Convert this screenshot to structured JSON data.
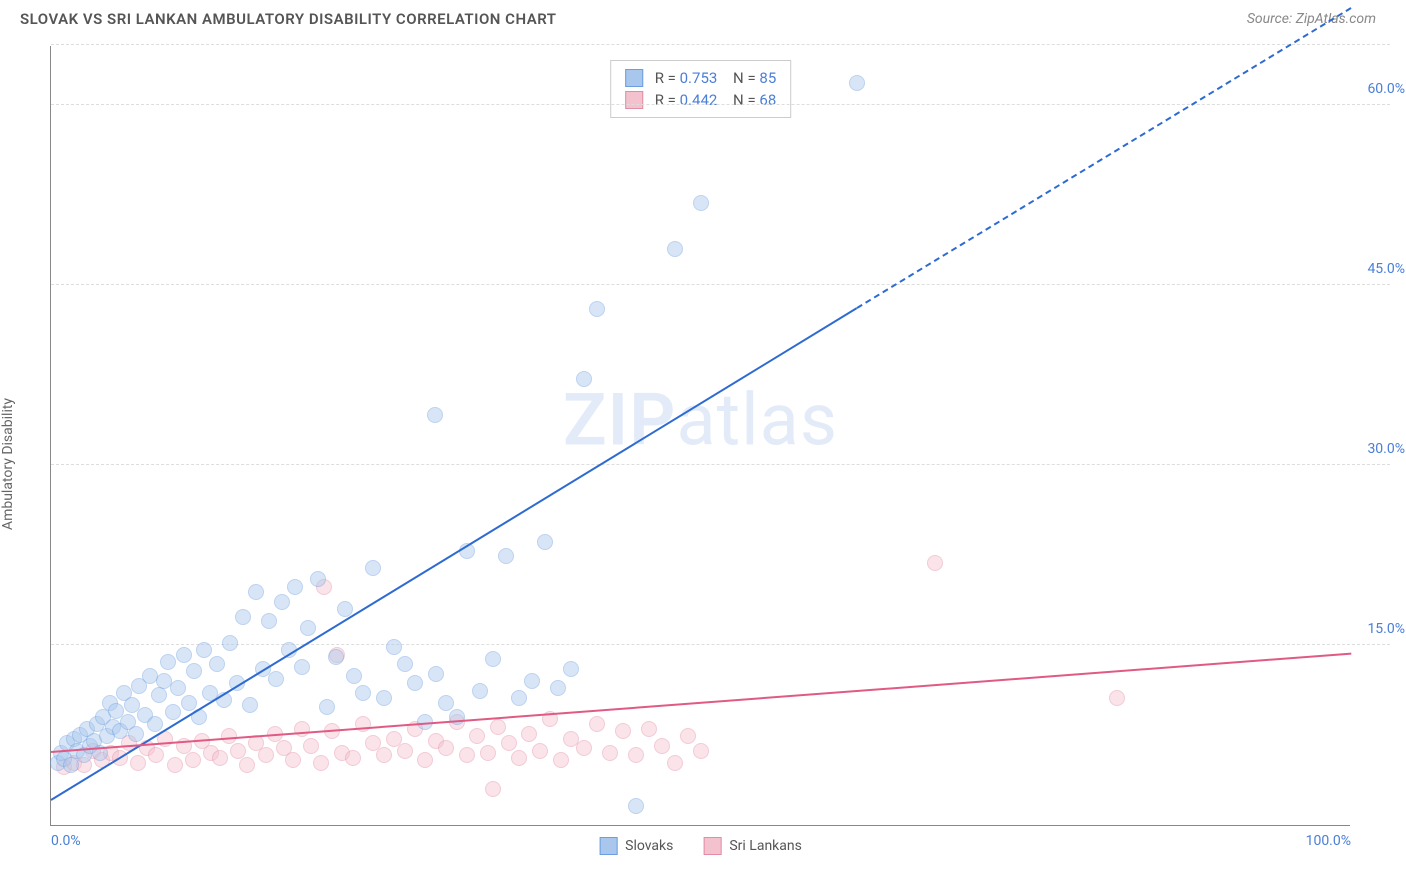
{
  "header": {
    "title": "SLOVAK VS SRI LANKAN AMBULATORY DISABILITY CORRELATION CHART",
    "source": "Source: ZipAtlas.com"
  },
  "chart": {
    "type": "scatter",
    "ylabel": "Ambulatory Disability",
    "watermark_zip": "ZIP",
    "watermark_atlas": "atlas",
    "xlim": [
      0,
      100
    ],
    "ylim": [
      0,
      65
    ],
    "xticks": [
      {
        "v": 0,
        "label": "0.0%"
      },
      {
        "v": 100,
        "label": "100.0%"
      }
    ],
    "yticks": [
      {
        "v": 15,
        "label": "15.0%"
      },
      {
        "v": 30,
        "label": "30.0%"
      },
      {
        "v": 45,
        "label": "45.0%"
      },
      {
        "v": 60,
        "label": "60.0%"
      }
    ],
    "grid_color": "#dddddd",
    "axis_color": "#888888",
    "background_color": "#ffffff",
    "marker_radius": 8,
    "marker_opacity": 0.45,
    "series": {
      "slovaks": {
        "label": "Slovaks",
        "fill": "#a9c7ec",
        "stroke": "#6b9de0",
        "line_color": "#2e6bd1",
        "r": "0.753",
        "n": "85",
        "trend": {
          "x1": 0,
          "y1": 2,
          "x2": 62,
          "y2": 43,
          "x2_dash": 100,
          "y2_dash": 68
        },
        "points": [
          [
            0.5,
            5.2
          ],
          [
            0.8,
            6.0
          ],
          [
            1.0,
            5.5
          ],
          [
            1.2,
            6.8
          ],
          [
            1.5,
            5.0
          ],
          [
            1.8,
            7.2
          ],
          [
            2.0,
            6.2
          ],
          [
            2.2,
            7.5
          ],
          [
            2.5,
            5.8
          ],
          [
            2.8,
            8.0
          ],
          [
            3.0,
            6.6
          ],
          [
            3.3,
            7.0
          ],
          [
            3.5,
            8.4
          ],
          [
            3.8,
            6.0
          ],
          [
            4.0,
            9.0
          ],
          [
            4.3,
            7.4
          ],
          [
            4.5,
            10.2
          ],
          [
            4.8,
            8.2
          ],
          [
            5.0,
            9.5
          ],
          [
            5.3,
            7.8
          ],
          [
            5.6,
            11.0
          ],
          [
            5.9,
            8.6
          ],
          [
            6.2,
            10.0
          ],
          [
            6.5,
            7.6
          ],
          [
            6.8,
            11.6
          ],
          [
            7.2,
            9.2
          ],
          [
            7.6,
            12.4
          ],
          [
            8.0,
            8.4
          ],
          [
            8.3,
            10.8
          ],
          [
            8.7,
            12.0
          ],
          [
            9.0,
            13.6
          ],
          [
            9.4,
            9.4
          ],
          [
            9.8,
            11.4
          ],
          [
            10.2,
            14.2
          ],
          [
            10.6,
            10.2
          ],
          [
            11.0,
            12.8
          ],
          [
            11.4,
            9.0
          ],
          [
            11.8,
            14.6
          ],
          [
            12.2,
            11.0
          ],
          [
            12.8,
            13.4
          ],
          [
            13.3,
            10.4
          ],
          [
            13.8,
            15.2
          ],
          [
            14.3,
            11.8
          ],
          [
            14.8,
            17.3
          ],
          [
            15.3,
            10.0
          ],
          [
            15.8,
            19.4
          ],
          [
            16.3,
            13.0
          ],
          [
            16.8,
            17.0
          ],
          [
            17.3,
            12.2
          ],
          [
            17.8,
            18.6
          ],
          [
            18.3,
            14.6
          ],
          [
            18.8,
            19.8
          ],
          [
            19.3,
            13.2
          ],
          [
            19.8,
            16.4
          ],
          [
            20.5,
            20.5
          ],
          [
            21.2,
            9.8
          ],
          [
            21.9,
            14.0
          ],
          [
            22.6,
            18.0
          ],
          [
            23.3,
            12.4
          ],
          [
            24.0,
            11.0
          ],
          [
            24.8,
            21.4
          ],
          [
            25.6,
            10.6
          ],
          [
            26.4,
            14.8
          ],
          [
            27.2,
            13.4
          ],
          [
            28.0,
            11.8
          ],
          [
            28.8,
            8.6
          ],
          [
            29.6,
            12.6
          ],
          [
            30.4,
            10.2
          ],
          [
            31.2,
            9.0
          ],
          [
            32.0,
            22.8
          ],
          [
            33.0,
            11.2
          ],
          [
            34.0,
            13.8
          ],
          [
            35.0,
            22.4
          ],
          [
            36.0,
            10.6
          ],
          [
            37.0,
            12.0
          ],
          [
            38.0,
            23.6
          ],
          [
            39.0,
            11.4
          ],
          [
            40.0,
            13.0
          ],
          [
            41.0,
            37.2
          ],
          [
            42.0,
            43.0
          ],
          [
            45.0,
            1.6
          ],
          [
            48.0,
            48.0
          ],
          [
            50.0,
            51.8
          ],
          [
            62.0,
            61.8
          ],
          [
            29.5,
            34.2
          ]
        ]
      },
      "srilankans": {
        "label": "Sri Lankans",
        "fill": "#f4c2cf",
        "stroke": "#e38da4",
        "line_color": "#e05a84",
        "r": "0.442",
        "n": "68",
        "trend": {
          "x1": 0,
          "y1": 6.0,
          "x2": 100,
          "y2": 14.2
        },
        "points": [
          [
            1.0,
            4.8
          ],
          [
            1.8,
            5.2
          ],
          [
            2.5,
            5.0
          ],
          [
            3.2,
            6.2
          ],
          [
            3.9,
            5.4
          ],
          [
            4.6,
            6.0
          ],
          [
            5.3,
            5.6
          ],
          [
            6.0,
            6.8
          ],
          [
            6.7,
            5.2
          ],
          [
            7.4,
            6.4
          ],
          [
            8.1,
            5.8
          ],
          [
            8.8,
            7.2
          ],
          [
            9.5,
            5.0
          ],
          [
            10.2,
            6.6
          ],
          [
            10.9,
            5.4
          ],
          [
            11.6,
            7.0
          ],
          [
            12.3,
            6.0
          ],
          [
            13.0,
            5.6
          ],
          [
            13.7,
            7.4
          ],
          [
            14.4,
            6.2
          ],
          [
            15.1,
            5.0
          ],
          [
            15.8,
            6.8
          ],
          [
            16.5,
            5.8
          ],
          [
            17.2,
            7.6
          ],
          [
            17.9,
            6.4
          ],
          [
            18.6,
            5.4
          ],
          [
            19.3,
            8.0
          ],
          [
            20.0,
            6.6
          ],
          [
            20.8,
            5.2
          ],
          [
            21.6,
            7.8
          ],
          [
            22.4,
            6.0
          ],
          [
            23.2,
            5.6
          ],
          [
            24.0,
            8.4
          ],
          [
            24.8,
            6.8
          ],
          [
            25.6,
            5.8
          ],
          [
            26.4,
            7.2
          ],
          [
            27.2,
            6.2
          ],
          [
            28.0,
            8.0
          ],
          [
            28.8,
            5.4
          ],
          [
            29.6,
            7.0
          ],
          [
            30.4,
            6.4
          ],
          [
            31.2,
            8.6
          ],
          [
            32.0,
            5.8
          ],
          [
            32.8,
            7.4
          ],
          [
            33.6,
            6.0
          ],
          [
            34.4,
            8.2
          ],
          [
            35.2,
            6.8
          ],
          [
            36.0,
            5.6
          ],
          [
            36.8,
            7.6
          ],
          [
            37.6,
            6.2
          ],
          [
            38.4,
            8.8
          ],
          [
            39.2,
            5.4
          ],
          [
            40.0,
            7.2
          ],
          [
            41.0,
            6.4
          ],
          [
            42.0,
            8.4
          ],
          [
            43.0,
            6.0
          ],
          [
            44.0,
            7.8
          ],
          [
            45.0,
            5.8
          ],
          [
            46.0,
            8.0
          ],
          [
            47.0,
            6.6
          ],
          [
            48.0,
            5.2
          ],
          [
            49.0,
            7.4
          ],
          [
            50.0,
            6.2
          ],
          [
            21.0,
            19.8
          ],
          [
            22.0,
            14.2
          ],
          [
            68.0,
            21.8
          ],
          [
            82.0,
            10.6
          ],
          [
            34.0,
            3.0
          ]
        ]
      }
    },
    "legend_bottom": [
      {
        "key": "slovaks"
      },
      {
        "key": "srilankans"
      }
    ]
  }
}
